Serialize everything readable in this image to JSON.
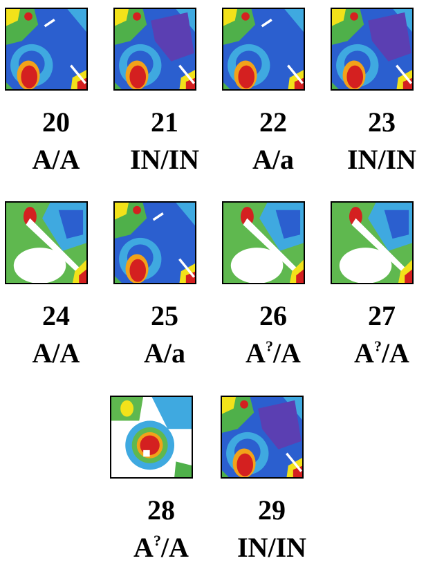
{
  "panels": [
    {
      "number": "20",
      "genotype": "A/A"
    },
    {
      "number": "21",
      "genotype": "IN/IN"
    },
    {
      "number": "22",
      "genotype": "A/a"
    },
    {
      "number": "23",
      "genotype": "IN/IN"
    },
    {
      "number": "24",
      "genotype": "A/A"
    },
    {
      "number": "25",
      "genotype": "A/a"
    },
    {
      "number": "26",
      "genotype_parts": {
        "base": "A",
        "sup": "?",
        "rest": "/A"
      }
    },
    {
      "number": "27",
      "genotype_parts": {
        "base": "A",
        "sup": "?",
        "rest": "/A"
      }
    },
    {
      "number": "28",
      "genotype_parts": {
        "base": "A",
        "sup": "?",
        "rest": "/A"
      }
    },
    {
      "number": "29",
      "genotype": "IN/IN"
    }
  ]
}
